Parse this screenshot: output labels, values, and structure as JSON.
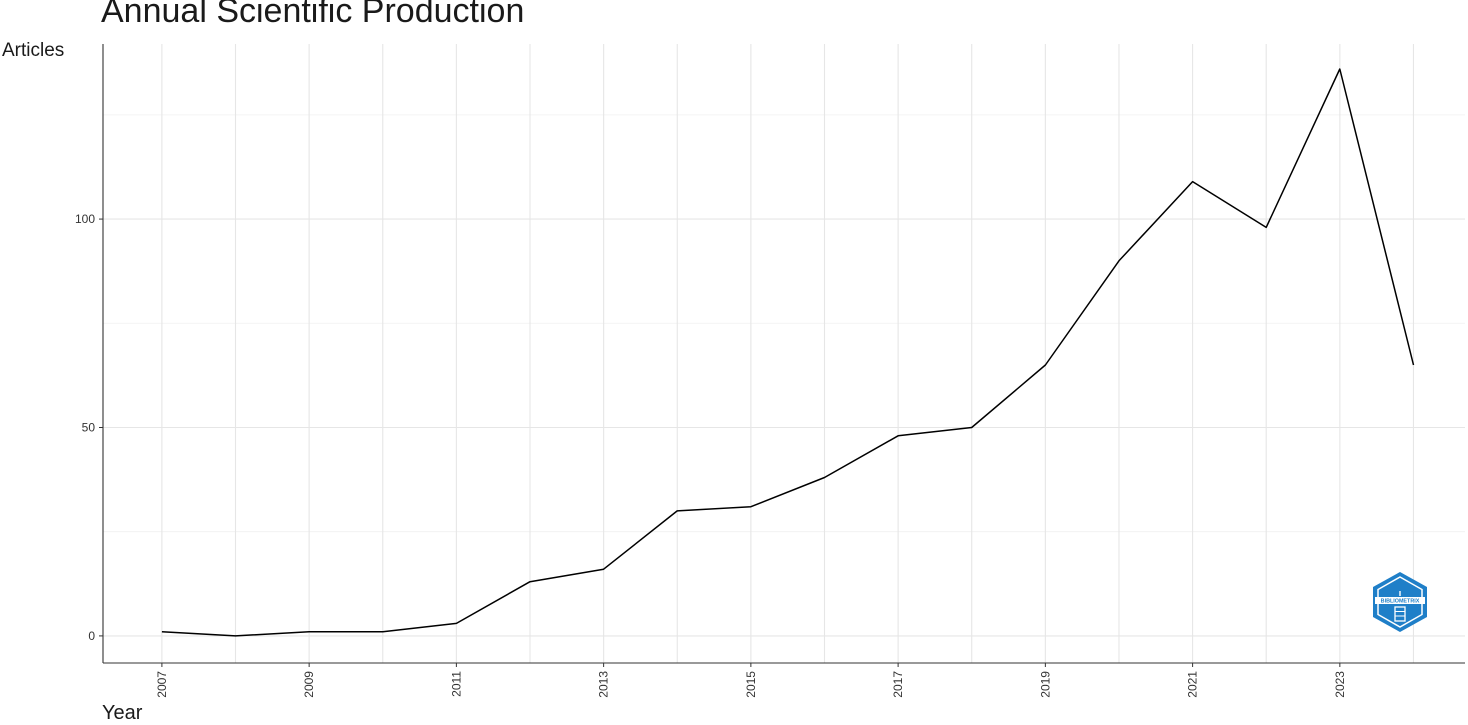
{
  "chart_data": {
    "type": "line",
    "title": "Annual Scientific Production",
    "xlabel": "Year",
    "ylabel": "Articles",
    "x": [
      2007,
      2008,
      2009,
      2010,
      2011,
      2012,
      2013,
      2014,
      2015,
      2016,
      2017,
      2018,
      2019,
      2020,
      2021,
      2022,
      2023,
      2024
    ],
    "series": [
      {
        "values": [
          1,
          0,
          1,
          1,
          3,
          13,
          16,
          30,
          31,
          38,
          48,
          50,
          65,
          90,
          109,
          98,
          136,
          65
        ]
      }
    ],
    "x_tick_labels": [
      "2007",
      "2009",
      "2011",
      "2013",
      "2015",
      "2017",
      "2019",
      "2021",
      "2023"
    ],
    "y_tick_labels": [
      "0",
      "50",
      "100"
    ],
    "xlim": [
      2006.2,
      2024.7
    ],
    "ylim": [
      -6.5,
      142
    ],
    "grid": true,
    "line_color": "#000000",
    "grid_color": "#e6e6e6"
  },
  "logo": {
    "text": "BIBLIOMETRIX",
    "color": "#1f7fc8"
  }
}
